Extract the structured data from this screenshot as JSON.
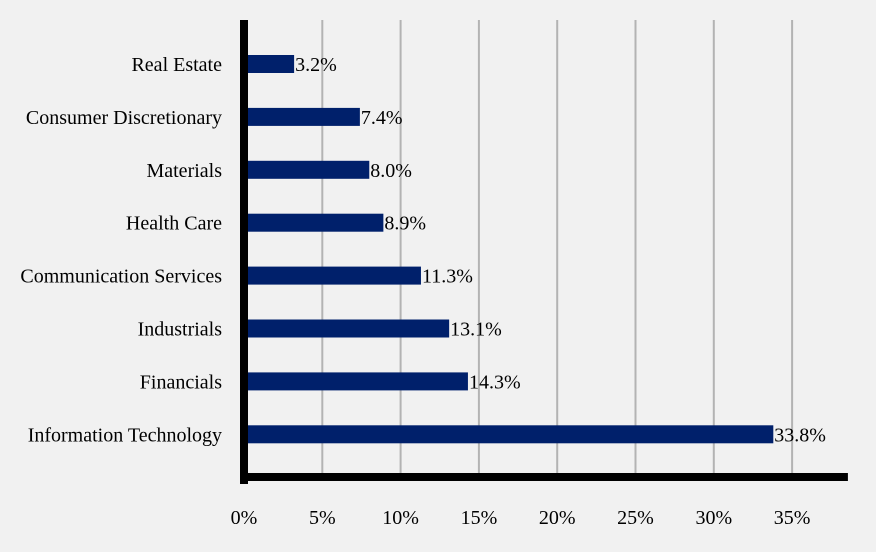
{
  "chart_data": {
    "type": "bar",
    "orientation": "horizontal",
    "categories": [
      "Real Estate",
      "Consumer Discretionary",
      "Materials",
      "Health Care",
      "Communication Services",
      "Industrials",
      "Financials",
      "Information Technology"
    ],
    "values": [
      3.2,
      7.4,
      8.0,
      8.9,
      11.3,
      13.1,
      14.3,
      33.8
    ],
    "value_labels": [
      "3.2%",
      "7.4%",
      "8.0%",
      "8.9%",
      "11.3%",
      "13.1%",
      "14.3%",
      "33.8%"
    ],
    "x_ticks": [
      0,
      5,
      10,
      15,
      20,
      25,
      30,
      35
    ],
    "x_tick_labels": [
      "0%",
      "5%",
      "10%",
      "15%",
      "20%",
      "25%",
      "30%",
      "35%"
    ],
    "xlim": [
      0,
      38.5
    ],
    "grid": "vertical",
    "legend": "none",
    "title": "",
    "xlabel": "",
    "ylabel": "",
    "colors": {
      "bar": "#00206b",
      "axis": "#000000",
      "grid": "#b3b3b3",
      "background": "#f1f1f1"
    }
  }
}
